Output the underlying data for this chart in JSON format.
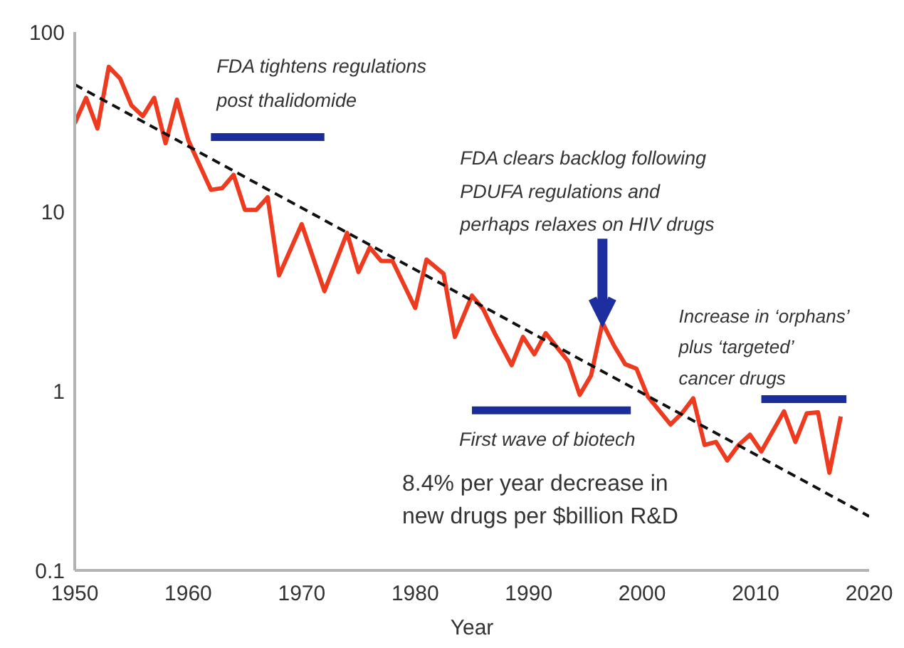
{
  "chart_data": {
    "type": "line",
    "xlabel": "Year",
    "xlim": [
      1950,
      2020
    ],
    "xticks": [
      1950,
      1960,
      1970,
      1980,
      1990,
      2000,
      2010,
      2020
    ],
    "ylim": [
      0.1,
      100
    ],
    "yticks": [
      0.1,
      1,
      10,
      100
    ],
    "log": true,
    "annotations": [
      {
        "text": "FDA tightens regulations post thalidomide",
        "x": 1962,
        "y": 26
      },
      {
        "text": "FDA clears backlog following PDUFA regulations and perhaps relaxes on HIV drugs",
        "x": 1996.5,
        "y": 2.4
      },
      {
        "text": "First wave of biotech",
        "x": 1985,
        "y": 0.78
      },
      {
        "text": "Increase in ‘orphans’ plus ‘targeted’ cancer drugs",
        "x": 2010.5,
        "y": 0.9
      },
      "8.4% per year decrease in new drugs per $billion R&D"
    ],
    "series": [
      {
        "color": "#ee3a1e",
        "x": [
          1950,
          1951,
          1952,
          1953,
          1954,
          1955,
          1956,
          1957,
          1958,
          1959,
          1960,
          1962,
          1963,
          1964,
          1965,
          1966,
          1967,
          1968,
          1970,
          1972,
          1974,
          1975,
          1976,
          1977,
          1978,
          1980,
          1981,
          1982.5,
          1983.5,
          1985,
          1986,
          1987,
          1988.5,
          1989.5,
          1990.5,
          1991.5,
          1992.5,
          1993.5,
          1994.5,
          1995.5,
          1996.5,
          1997.5,
          1998.5,
          1999.5,
          2000.5,
          2002.5,
          2003.5,
          2004.5,
          2005.5,
          2006.5,
          2007.5,
          2008.5,
          2009.5,
          2010.5,
          2012.5,
          2013.5,
          2014.5,
          2015.5,
          2016.5,
          2017.5
        ],
        "values": [
          31,
          43,
          29,
          64,
          55,
          39,
          34,
          43,
          24,
          42,
          25,
          13.2,
          13.5,
          16,
          10.2,
          10.2,
          12,
          4.4,
          8.5,
          3.6,
          7.6,
          4.6,
          6.3,
          5.3,
          5.3,
          2.9,
          5.4,
          4.5,
          2.0,
          3.4,
          2.85,
          2.1,
          1.39,
          2.0,
          1.6,
          2.1,
          1.75,
          1.46,
          0.95,
          1.22,
          2.4,
          1.8,
          1.41,
          1.33,
          0.93,
          0.65,
          0.75,
          0.91,
          0.5,
          0.52,
          0.41,
          0.5,
          0.57,
          0.46,
          0.77,
          0.52,
          0.75,
          0.76,
          0.35,
          0.72
        ]
      },
      {
        "color": "#111111",
        "line_style": "dashed",
        "x": [
          1950,
          2020
        ],
        "values": [
          51,
          0.2
        ]
      },
      {
        "color": "#1b2d9b",
        "x": [
          1962,
          1972
        ],
        "values": [
          26,
          26
        ]
      },
      {
        "color": "#1b2d9b",
        "x": [
          1985,
          1999
        ],
        "values": [
          0.78,
          0.78
        ]
      },
      {
        "color": "#1b2d9b",
        "x": [
          2010.5,
          2018
        ],
        "values": [
          0.9,
          0.9
        ]
      }
    ]
  }
}
